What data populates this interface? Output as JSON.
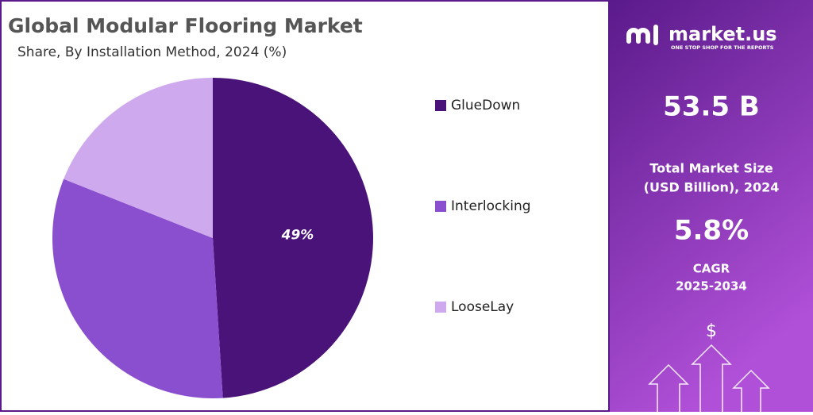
{
  "chart_data": {
    "type": "pie",
    "title": "Global Modular Flooring Market",
    "subtitle": "Share, By Installation Method, 2024 (%)",
    "categories": [
      "GlueDown",
      "Interlocking",
      "LooseLay"
    ],
    "values": [
      49,
      32,
      19
    ],
    "value_labels": [
      "49%",
      null,
      null
    ],
    "colors": [
      "#4a1379",
      "#8a4fcf",
      "#cfa9ee"
    ]
  },
  "sidebar": {
    "brand": "market.us",
    "tagline": "ONE STOP SHOP FOR THE REPORTS",
    "market_size": "53.5 B",
    "market_size_label": [
      "Total Market Size",
      "(USD Billion), 2024"
    ],
    "cagr": "5.8%",
    "cagr_label": [
      "CAGR",
      "2025-2034"
    ],
    "icon_symbol": "$"
  }
}
